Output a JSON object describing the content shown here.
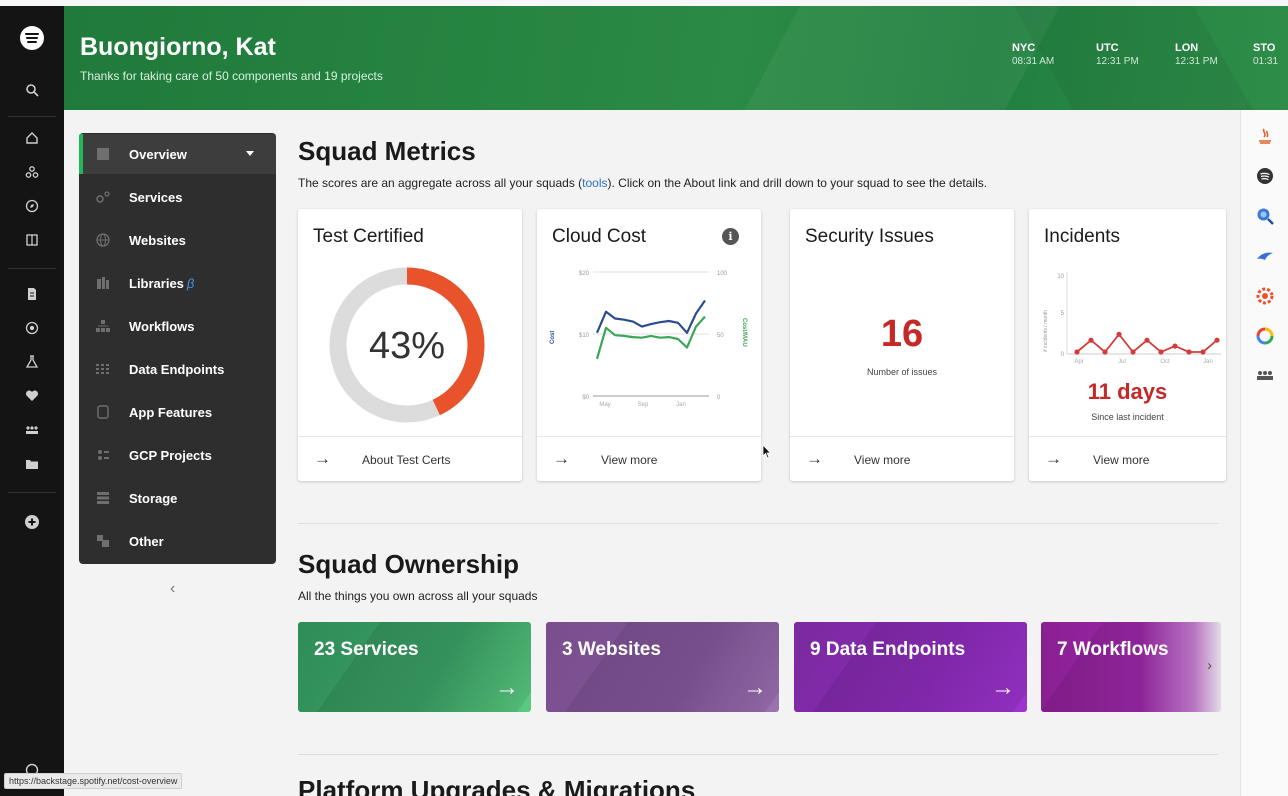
{
  "header": {
    "greeting": "Buongiorno, Kat",
    "subtitle": "Thanks for taking care of 50 components and 19 projects",
    "clocks": [
      {
        "city": "NYC",
        "time": "08:31 AM"
      },
      {
        "city": "UTC",
        "time": "12:31 PM"
      },
      {
        "city": "LON",
        "time": "12:31 PM"
      },
      {
        "city": "STO",
        "time": "01:31"
      }
    ]
  },
  "sidebar": {
    "items": [
      {
        "label": "Overview",
        "icon": "overview-icon"
      },
      {
        "label": "Services",
        "icon": "services-icon"
      },
      {
        "label": "Websites",
        "icon": "globe-icon"
      },
      {
        "label": "Libraries",
        "icon": "libraries-icon",
        "badge": "β"
      },
      {
        "label": "Workflows",
        "icon": "workflows-icon"
      },
      {
        "label": "Data Endpoints",
        "icon": "data-endpoints-icon"
      },
      {
        "label": "App Features",
        "icon": "app-features-icon"
      },
      {
        "label": "GCP Projects",
        "icon": "gcp-projects-icon"
      },
      {
        "label": "Storage",
        "icon": "storage-icon"
      },
      {
        "label": "Other",
        "icon": "other-icon"
      }
    ],
    "collapse": "‹"
  },
  "metrics": {
    "title": "Squad Metrics",
    "desc_before": "The scores are an aggregate across all your squads (",
    "desc_link": "tools",
    "desc_after": "). Click on the About link and drill down to your squad to see the details.",
    "cards": {
      "test_certified": {
        "title": "Test Certified",
        "value": "43%",
        "percent": 43,
        "footer": "About Test Certs"
      },
      "cloud_cost": {
        "title": "Cloud Cost",
        "footer": "View more",
        "info": "i"
      },
      "security": {
        "title": "Security Issues",
        "value": "16",
        "caption": "Number of issues",
        "footer": "View more"
      },
      "incidents": {
        "title": "Incidents",
        "value": "11 days",
        "caption": "Since last incident",
        "footer": "View more"
      }
    }
  },
  "ownership": {
    "title": "Squad Ownership",
    "desc": "All the things you own across all your squads",
    "tiles": [
      {
        "label": "23 Services"
      },
      {
        "label": "3 Websites"
      },
      {
        "label": "9 Data Endpoints"
      },
      {
        "label": "7 Workflows"
      }
    ],
    "next": "›"
  },
  "next_section": {
    "title": "Platform Upgrades & Migrations"
  },
  "status_url": "https://backstage.spotify.net/cost-overview",
  "chart_data": [
    {
      "type": "line",
      "name": "Cloud Cost",
      "ylabel": "Cost",
      "y2label": "Cost/MAU",
      "yticks": [
        "$20",
        "$10",
        "$0"
      ],
      "y2ticks": [
        "100",
        "50",
        "0"
      ],
      "ylim": [
        0,
        20
      ],
      "xticks": [
        "May",
        "Sep",
        "Jan"
      ],
      "series": [
        {
          "color": "#2a4d8f",
          "values": [
            10.2,
            13.6,
            12.5,
            12.3,
            12.0,
            11.2,
            11.6,
            11.9,
            12.1,
            11.8,
            10.2,
            13.3,
            15.4
          ]
        },
        {
          "color": "#3aa757",
          "values": [
            6.0,
            11.0,
            9.8,
            9.7,
            9.5,
            9.4,
            9.7,
            9.4,
            9.5,
            9.2,
            7.8,
            11.2,
            12.8
          ]
        }
      ]
    },
    {
      "type": "line",
      "name": "Incidents",
      "ylabel": "# incidents / month",
      "yticks": [
        "10",
        "5",
        "0"
      ],
      "ylim": [
        0,
        10
      ],
      "xticks": [
        "Apr",
        "Jul",
        "Oct",
        "Jan"
      ],
      "series": [
        {
          "color": "#d43c3c",
          "values": [
            0,
            2,
            0,
            3,
            0,
            2,
            0,
            1,
            0,
            0,
            2
          ]
        }
      ]
    }
  ],
  "colors": {
    "spotify_green": "#1db954",
    "header_green": "#2b8a45",
    "accent_orange": "#e8532b",
    "big_number_red": "#c62828"
  }
}
